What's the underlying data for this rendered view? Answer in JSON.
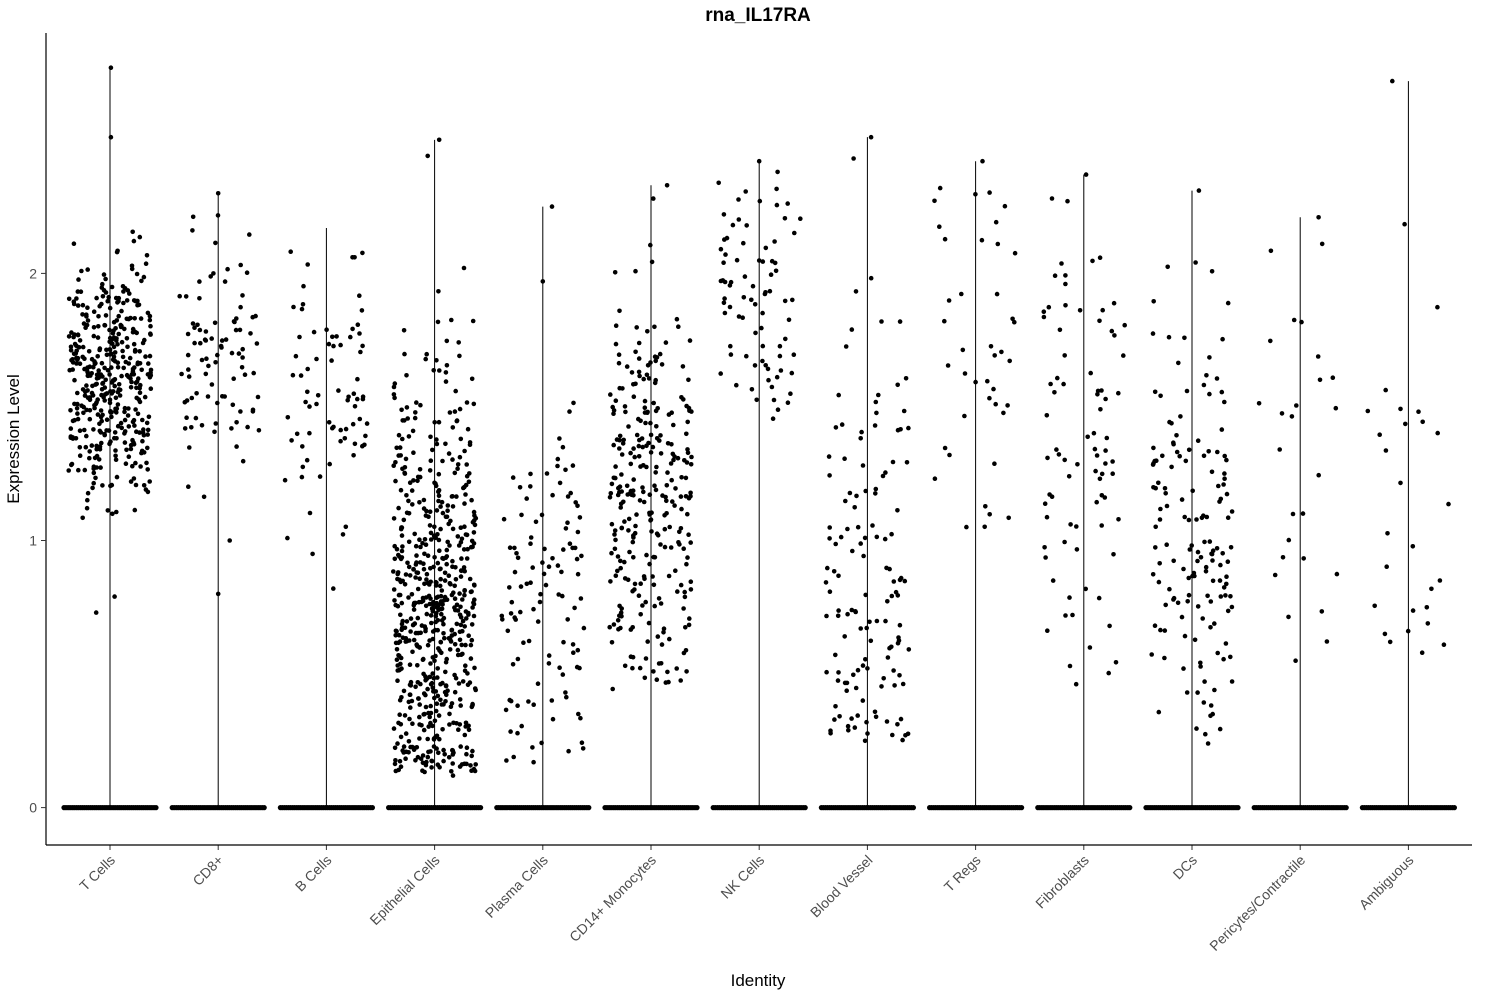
{
  "chart_data": {
    "type": "scatter",
    "title": "rna_IL17RA",
    "xlabel": "Identity",
    "ylabel": "Expression Level",
    "ylim": [
      -0.14,
      2.9
    ],
    "yticks": [
      0,
      1,
      2
    ],
    "grid": false,
    "legend": "none",
    "point_color": "#000000",
    "categories": [
      "T Cells",
      "CD8+",
      "B Cells",
      "Epithelial Cells",
      "Plasma Cells",
      "CD14+ Monocytes",
      "NK Cells",
      "Blood Vessel",
      "T Regs",
      "Fibroblasts",
      "DCs",
      "Pericytes/Contractile",
      "Ambiguous"
    ],
    "violin_max": [
      2.77,
      2.3,
      2.17,
      2.5,
      2.25,
      2.33,
      2.42,
      2.51,
      2.42,
      2.37,
      2.31,
      2.21,
      2.72
    ],
    "nonzero_points": [
      {
        "center": 1.62,
        "spread": 0.22,
        "min": 0.73,
        "max": 2.77,
        "count": 420,
        "extremes": [
          [
            0.02,
            2.77
          ],
          [
            0.02,
            2.51
          ],
          [
            -0.3,
            0.73
          ],
          [
            0.1,
            0.79
          ]
        ]
      },
      {
        "center": 1.7,
        "spread": 0.25,
        "min": 0.8,
        "max": 2.3,
        "count": 90,
        "extremes": [
          [
            0.0,
            2.3
          ],
          [
            0.0,
            0.8
          ],
          [
            0.25,
            1.0
          ]
        ]
      },
      {
        "center": 1.55,
        "spread": 0.28,
        "min": 0.82,
        "max": 2.17,
        "count": 75,
        "extremes": [
          [
            0.15,
            0.82
          ],
          [
            -0.3,
            0.95
          ]
        ]
      },
      {
        "center": 0.75,
        "spread": 0.45,
        "min": 0.13,
        "max": 2.5,
        "count": 620,
        "extremes": [
          [
            0.1,
            2.5
          ],
          [
            -0.15,
            2.44
          ],
          [
            0.4,
            0.12
          ]
        ]
      },
      {
        "center": 0.8,
        "spread": 0.35,
        "min": 0.17,
        "max": 2.25,
        "count": 110,
        "extremes": [
          [
            0.2,
            2.25
          ],
          [
            0.0,
            1.97
          ],
          [
            -0.2,
            0.17
          ]
        ]
      },
      {
        "center": 1.15,
        "spread": 0.4,
        "min": 0.44,
        "max": 2.33,
        "count": 290,
        "extremes": [
          [
            0.35,
            2.33
          ],
          [
            0.05,
            2.28
          ]
        ]
      },
      {
        "center": 1.9,
        "spread": 0.25,
        "min": 1.45,
        "max": 2.42,
        "count": 80,
        "extremes": [
          [
            0.0,
            2.42
          ],
          [
            0.4,
            2.38
          ]
        ]
      },
      {
        "center": 0.9,
        "spread": 0.45,
        "min": 0.25,
        "max": 2.51,
        "count": 130,
        "extremes": [
          [
            0.08,
            2.51
          ],
          [
            -0.3,
            2.43
          ],
          [
            -0.05,
            0.25
          ]
        ]
      },
      {
        "center": 1.75,
        "spread": 0.35,
        "min": 1.05,
        "max": 2.42,
        "count": 40,
        "extremes": [
          [
            0.15,
            2.42
          ],
          [
            -0.2,
            1.05
          ]
        ]
      },
      {
        "center": 1.4,
        "spread": 0.45,
        "min": 0.42,
        "max": 2.37,
        "count": 80,
        "extremes": [
          [
            0.05,
            2.37
          ],
          [
            -0.3,
            0.53
          ]
        ]
      },
      {
        "center": 1.0,
        "spread": 0.4,
        "min": 0.24,
        "max": 2.31,
        "count": 150,
        "extremes": [
          [
            0.15,
            2.31
          ],
          [
            0.45,
            0.35
          ],
          [
            0.35,
            0.24
          ]
        ]
      },
      {
        "center": 1.3,
        "spread": 0.55,
        "min": 0.55,
        "max": 2.21,
        "count": 25,
        "extremes": [
          [
            0.4,
            2.21
          ],
          [
            -0.1,
            0.55
          ]
        ]
      },
      {
        "center": 1.4,
        "spread": 0.6,
        "min": 0.58,
        "max": 2.72,
        "count": 25,
        "extremes": [
          [
            -0.35,
            2.72
          ],
          [
            0.4,
            0.75
          ],
          [
            0.3,
            0.58
          ]
        ]
      }
    ]
  }
}
